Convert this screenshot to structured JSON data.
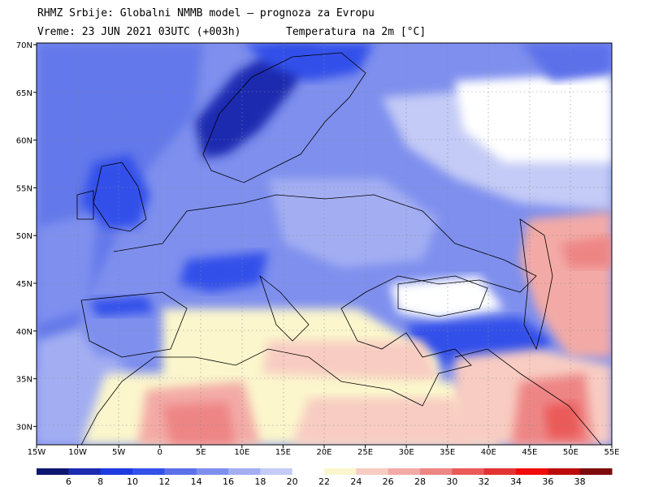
{
  "header": {
    "line1": "RHMZ Srbije: Globalni NMMB model — prognoza za Evropu",
    "line2_left": "Vreme: 23 JUN 2021 03UTC (+003h)",
    "line2_right": "Temperatura na 2m [°C]"
  },
  "map": {
    "lat_labels": [
      "70N",
      "65N",
      "60N",
      "55N",
      "50N",
      "45N",
      "40N",
      "35N",
      "30N"
    ],
    "lon_labels": [
      "15W",
      "10W",
      "5W",
      "0",
      "5E",
      "10E",
      "15E",
      "20E",
      "25E",
      "30E",
      "35E",
      "40E",
      "45E",
      "50E",
      "55E"
    ]
  },
  "colorbar": {
    "colors": [
      "#0d1670",
      "#1b2bb0",
      "#1d39e0",
      "#3350ea",
      "#5c70ea",
      "#7e8fee",
      "#a3aef2",
      "#c4cbf6",
      "#ffffff",
      "#fbf6cc",
      "#f8ccc2",
      "#f3aaa6",
      "#ee8585",
      "#ea5a58",
      "#e23232",
      "#f00a0a",
      "#bd0a0a",
      "#7c0a0a"
    ],
    "labels": [
      "6",
      "8",
      "10",
      "12",
      "14",
      "16",
      "18",
      "20",
      "22",
      "24",
      "26",
      "28",
      "30",
      "32",
      "34",
      "36",
      "38"
    ]
  }
}
